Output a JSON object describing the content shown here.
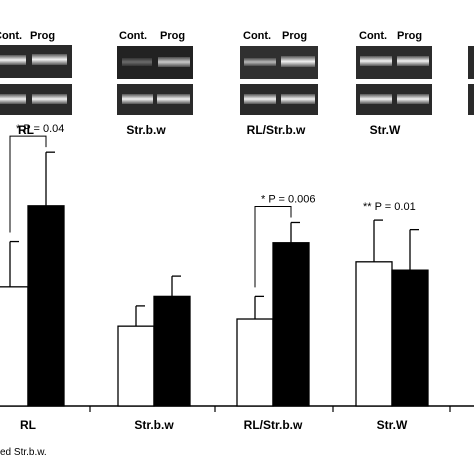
{
  "gels": [
    {
      "title": "RL",
      "lane_labels": [
        "Cont.",
        "Prog"
      ]
    },
    {
      "title": "Str.b.w",
      "lane_labels": [
        "Cont.",
        "Prog"
      ]
    },
    {
      "title": "RL/Str.b.w",
      "lane_labels": [
        "Cont.",
        "Prog"
      ]
    },
    {
      "title": "Str.W",
      "lane_labels": [
        "Cont.",
        "Prog"
      ]
    }
  ],
  "chart_data": {
    "type": "bar",
    "categories": [
      "RL",
      "Str.b.w",
      "RL/Str.b.w",
      "Str.W"
    ],
    "series": [
      {
        "values": [
          1.0,
          0.67,
          0.73,
          1.21
        ],
        "errors": [
          0.38,
          0.17,
          0.19,
          0.35
        ],
        "color": "#ffffff"
      },
      {
        "values": [
          1.68,
          0.92,
          1.37,
          1.14
        ],
        "errors": [
          0.45,
          0.17,
          0.17,
          0.34
        ],
        "color": "#000000"
      }
    ],
    "annotations": [
      {
        "category": "RL",
        "text": "* P = 0.04",
        "bracket": true
      },
      {
        "category": "RL/Str.b.w",
        "text": "* P = 0.006",
        "bracket": true
      },
      {
        "category": "Str.W",
        "text": "** P = 0.01",
        "bracket": false
      }
    ],
    "ylim": [
      0,
      2.4
    ]
  },
  "footnote": "ed Str.b.w."
}
